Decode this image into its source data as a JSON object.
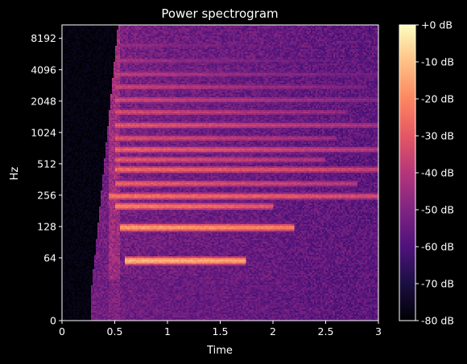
{
  "chart_data": {
    "type": "heatmap",
    "title": "Power spectrogram",
    "xlabel": "Time",
    "ylabel": "Hz",
    "xlim": [
      0,
      3
    ],
    "x_ticks": [
      {
        "value": 0,
        "label": "0"
      },
      {
        "value": 0.5,
        "label": "0.5"
      },
      {
        "value": 1,
        "label": "1"
      },
      {
        "value": 1.5,
        "label": "1.5"
      },
      {
        "value": 2,
        "label": "2"
      },
      {
        "value": 2.5,
        "label": "2.5"
      },
      {
        "value": 3,
        "label": "3"
      }
    ],
    "y_scale": "symlog (base 2)",
    "ylim": [
      0,
      11025
    ],
    "y_ticks": [
      {
        "value": 0,
        "label": "0"
      },
      {
        "value": 64,
        "label": "64"
      },
      {
        "value": 128,
        "label": "128"
      },
      {
        "value": 256,
        "label": "256"
      },
      {
        "value": 512,
        "label": "512"
      },
      {
        "value": 1024,
        "label": "1024"
      },
      {
        "value": 2048,
        "label": "2048"
      },
      {
        "value": 4096,
        "label": "4096"
      },
      {
        "value": 8192,
        "label": "8192"
      }
    ],
    "colorbar": {
      "colormap": "magma",
      "range_db": [
        -80,
        0
      ],
      "ticks": [
        {
          "value": 0,
          "label": "+0 dB"
        },
        {
          "value": -10,
          "label": "-10 dB"
        },
        {
          "value": -20,
          "label": "-20 dB"
        },
        {
          "value": -30,
          "label": "-30 dB"
        },
        {
          "value": -40,
          "label": "-40 dB"
        },
        {
          "value": -50,
          "label": "-50 dB"
        },
        {
          "value": -60,
          "label": "-60 dB"
        },
        {
          "value": -70,
          "label": "-70 dB"
        },
        {
          "value": -80,
          "label": "-80 dB"
        }
      ]
    },
    "signal_onset_time": 0.28,
    "harmonics": [
      {
        "freq": 60,
        "start": 0.6,
        "end": 1.75,
        "db": -14
      },
      {
        "freq": 125,
        "start": 0.55,
        "end": 2.2,
        "db": -18
      },
      {
        "freq": 200,
        "start": 0.5,
        "end": 2.0,
        "db": -24
      },
      {
        "freq": 250,
        "start": 0.45,
        "end": 3.0,
        "db": -26
      },
      {
        "freq": 330,
        "start": 0.5,
        "end": 2.8,
        "db": -30
      },
      {
        "freq": 450,
        "start": 0.5,
        "end": 3.0,
        "db": -28
      },
      {
        "freq": 560,
        "start": 0.5,
        "end": 2.5,
        "db": -32
      },
      {
        "freq": 700,
        "start": 0.5,
        "end": 3.0,
        "db": -30
      },
      {
        "freq": 900,
        "start": 0.5,
        "end": 2.6,
        "db": -34
      },
      {
        "freq": 1200,
        "start": 0.5,
        "end": 3.0,
        "db": -32
      },
      {
        "freq": 1600,
        "start": 0.5,
        "end": 2.7,
        "db": -35
      },
      {
        "freq": 2100,
        "start": 0.5,
        "end": 3.0,
        "db": -36
      },
      {
        "freq": 2800,
        "start": 0.5,
        "end": 2.9,
        "db": -38
      },
      {
        "freq": 3700,
        "start": 0.5,
        "end": 3.0,
        "db": -40
      },
      {
        "freq": 5000,
        "start": 0.5,
        "end": 3.0,
        "db": -44
      },
      {
        "freq": 7000,
        "start": 0.55,
        "end": 3.0,
        "db": -48
      }
    ]
  },
  "colors": {
    "background": "#000000",
    "foreground": "#ffffff"
  }
}
